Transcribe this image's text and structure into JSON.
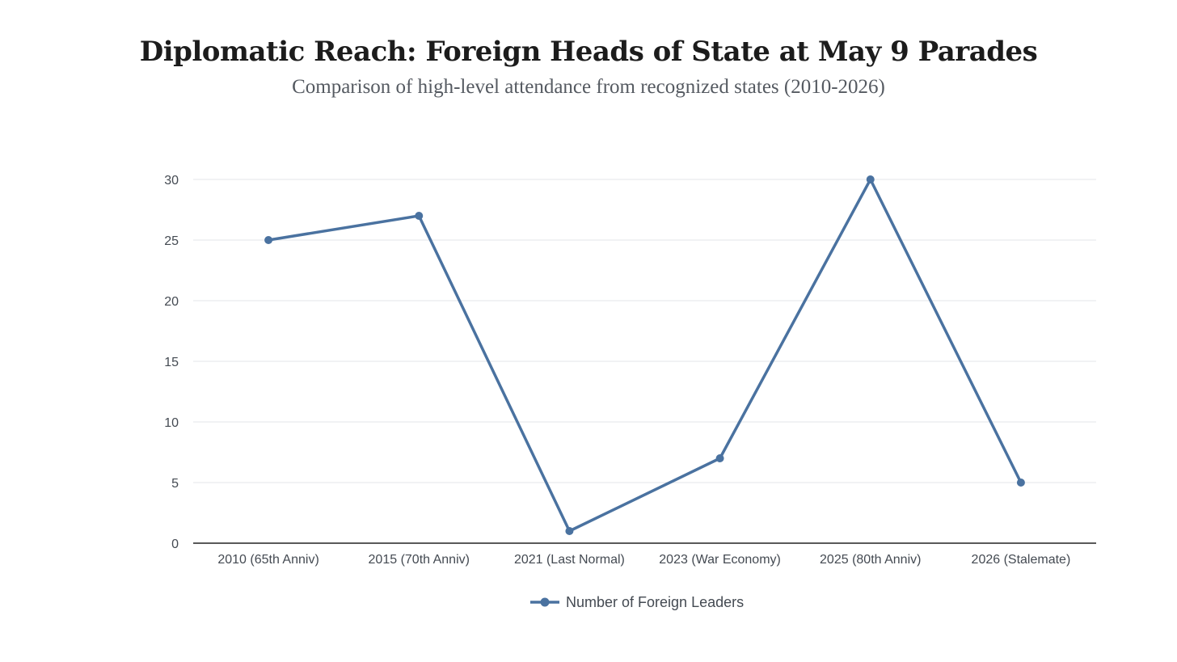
{
  "chart_data": {
    "type": "line",
    "title": "Diplomatic Reach: Foreign Heads of State at May 9 Parades",
    "subtitle": "Comparison of high-level attendance from recognized states (2010-2026)",
    "categories": [
      "2010 (65th Anniv)",
      "2015 (70th Anniv)",
      "2021 (Last Normal)",
      "2023 (War Economy)",
      "2025 (80th Anniv)",
      "2026 (Stalemate)"
    ],
    "series": [
      {
        "name": "Number of Foreign Leaders",
        "values": [
          25,
          27,
          1,
          7,
          30,
          5
        ],
        "color": "#4a72a0"
      }
    ],
    "ylim": [
      0,
      30
    ],
    "yticks": [
      0,
      5,
      10,
      15,
      20,
      25,
      30
    ],
    "grid": true,
    "legend": "bottom-center",
    "colors": {
      "grid": "#e3e5e8",
      "axis": "#222222"
    }
  }
}
